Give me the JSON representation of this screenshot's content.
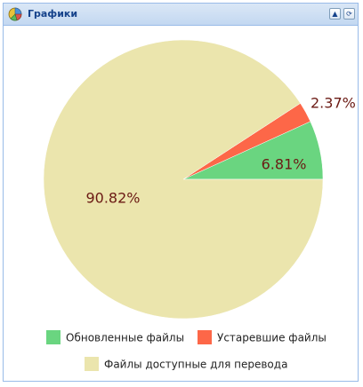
{
  "panel": {
    "title": "Графики",
    "icon": "pie-chart-icon",
    "tools": [
      {
        "name": "collapse-icon",
        "glyph": "▲"
      },
      {
        "name": "refresh-icon",
        "glyph": "⟳"
      }
    ]
  },
  "chart_data": {
    "type": "pie",
    "categories": [
      "Обновленные файлы",
      "Устаревшие файлы",
      "Файлы доступные для перевода"
    ],
    "values": [
      6.81,
      2.37,
      90.82
    ],
    "labels": [
      "6.81%",
      "2.37%",
      "90.82%"
    ],
    "colors": [
      "#6ad580",
      "#fd6748",
      "#ebe5ad"
    ],
    "legend_position": "bottom"
  }
}
